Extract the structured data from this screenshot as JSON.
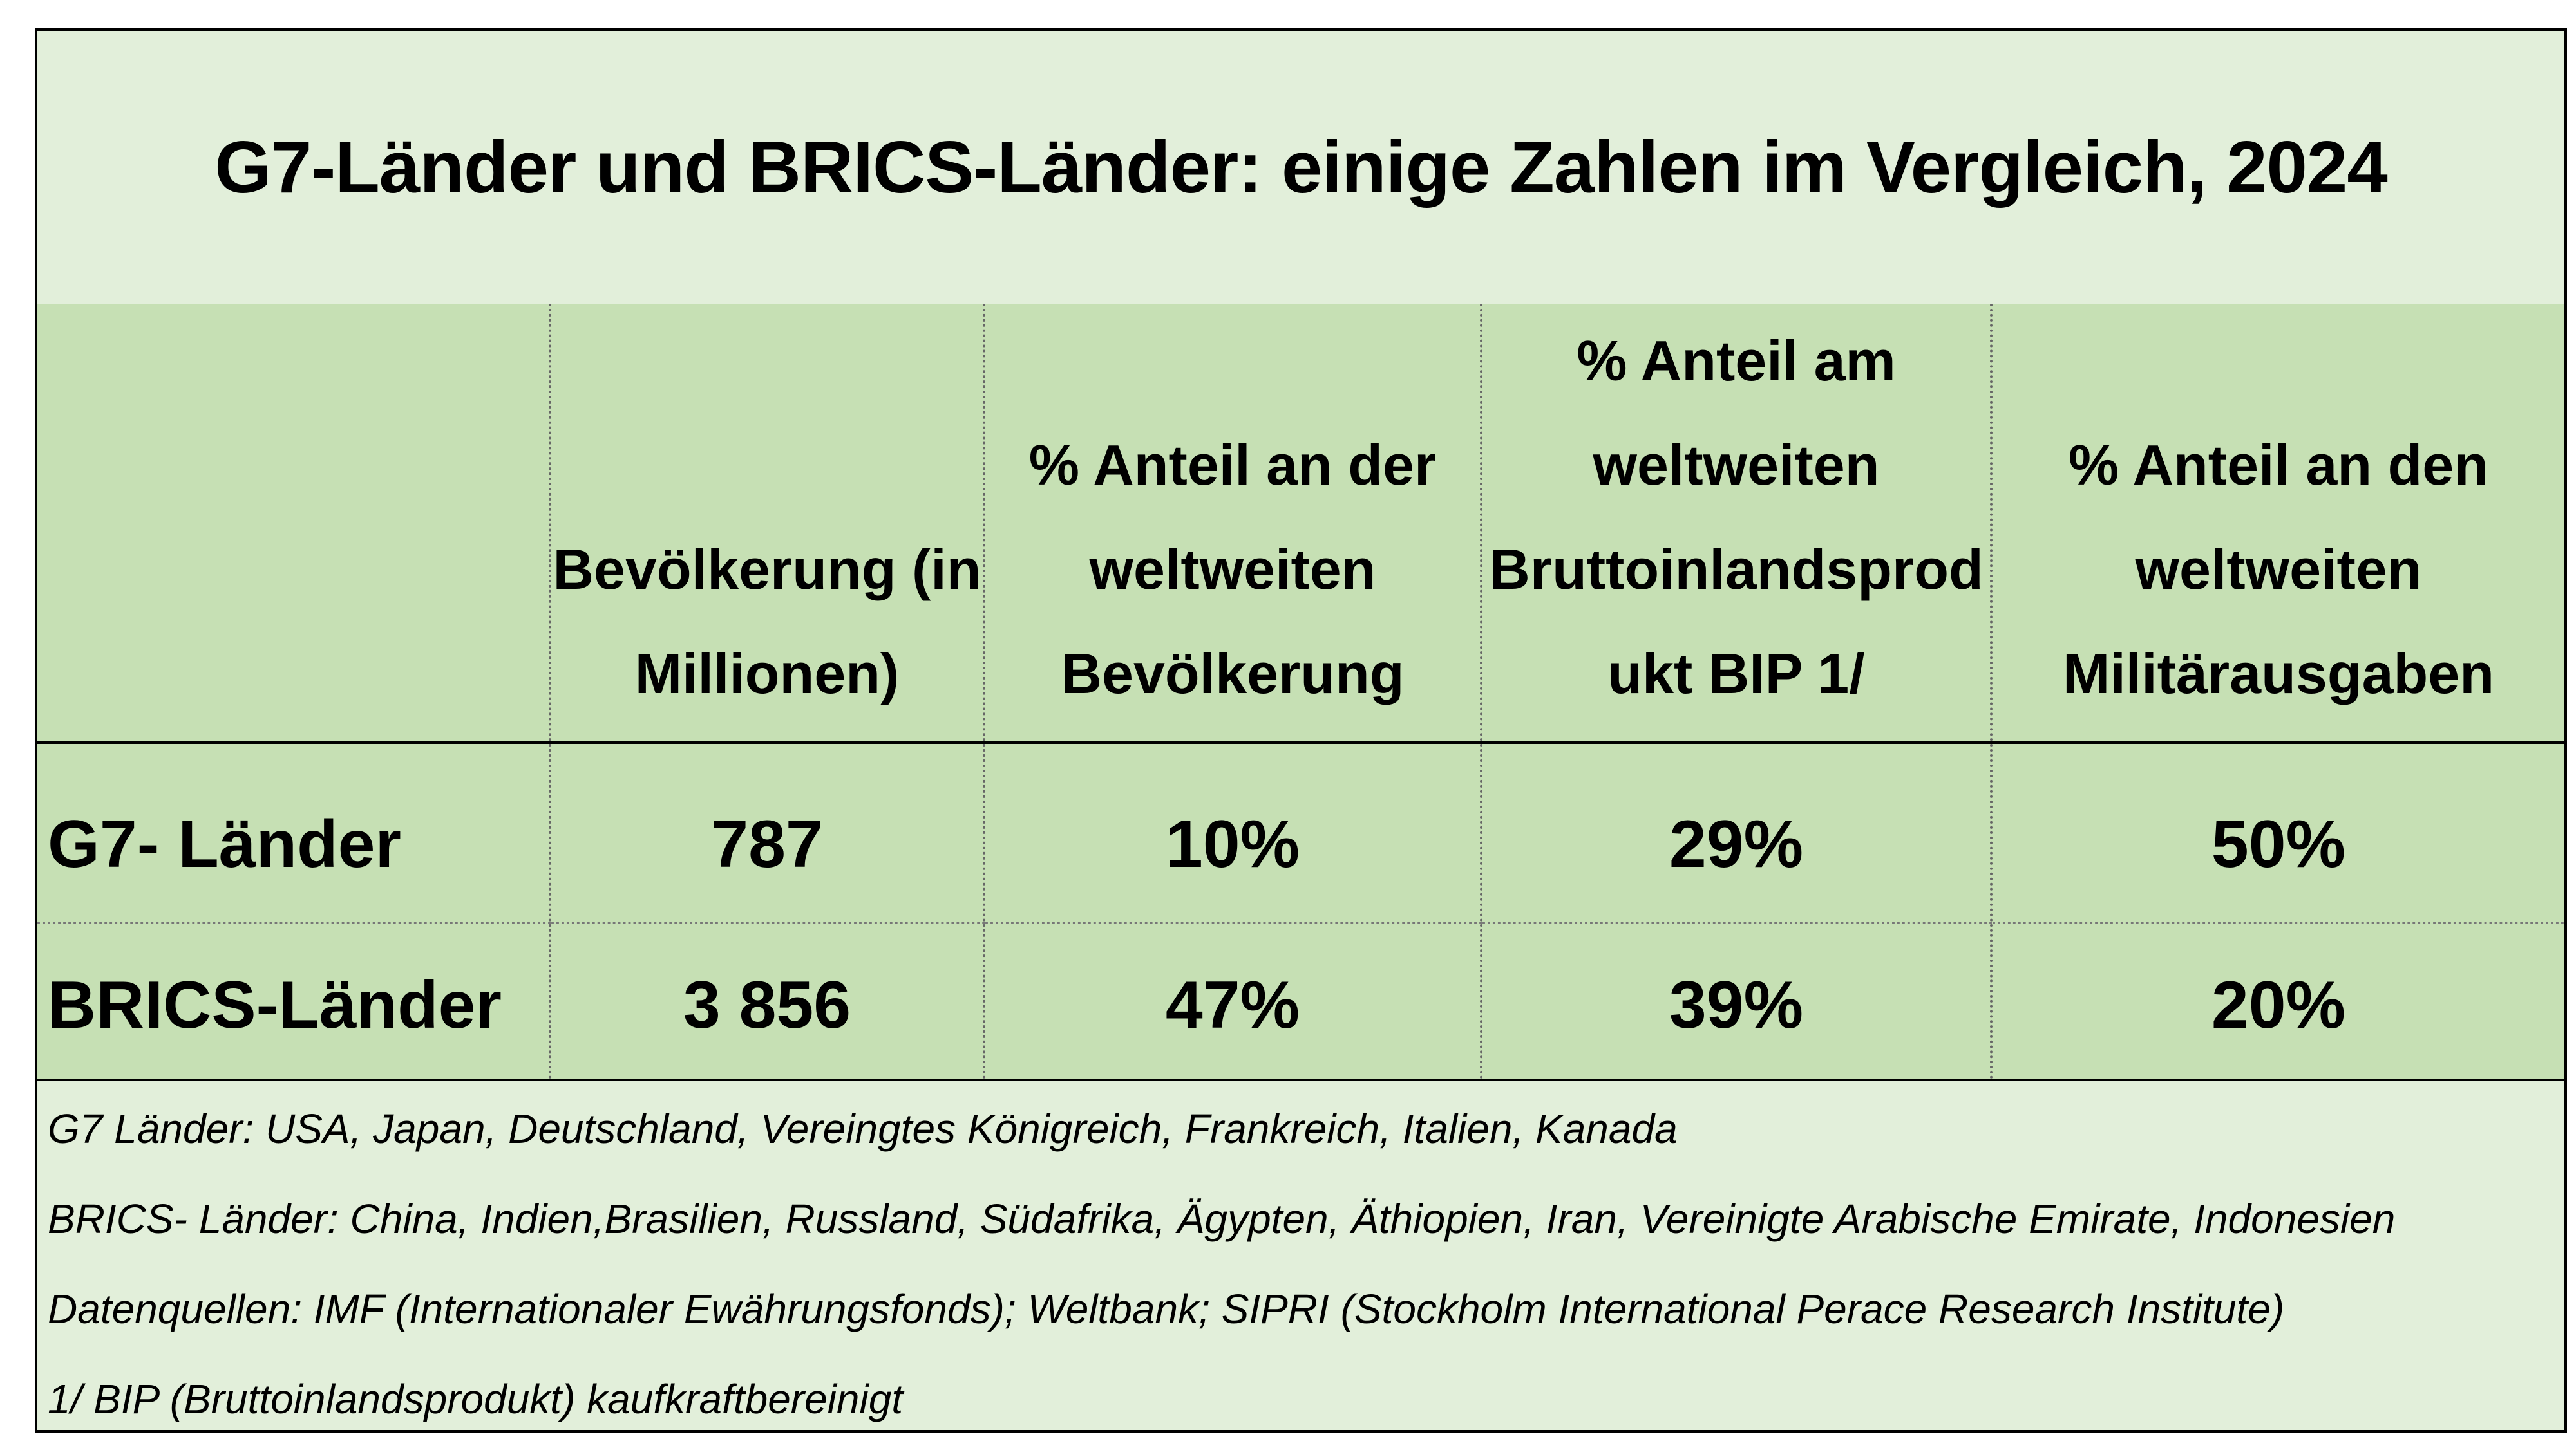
{
  "title": "G7-Länder und BRICS-Länder: einige Zahlen im Vergleich, 2024",
  "table": {
    "columns": [
      "",
      "Bevölkerung (in Millionen)",
      "% Anteil an der weltweiten Bevölkerung",
      "% Anteil am weltweiten Bruttoinlandsprodukt BIP 1/",
      "% Anteil an den weltweiten Militärausgaben"
    ],
    "header_lines": {
      "col1": [
        "Bevölkerung (in",
        "Millionen)"
      ],
      "col2": [
        "% Anteil an der",
        "weltweiten",
        "Bevölkerung"
      ],
      "col3": [
        "% Anteil am",
        "weltweiten",
        "Bruttoinlandsprod",
        "ukt BIP 1/"
      ],
      "col4": [
        "% Anteil an den",
        "weltweiten",
        "Militärausgaben"
      ]
    },
    "rows": [
      {
        "label": "G7- Länder",
        "population": "787",
        "population_share": "10%",
        "gdp_share": "29%",
        "military_share": "50%"
      },
      {
        "label": "BRICS-Länder",
        "population": "3 856",
        "population_share": "47%",
        "gdp_share": "39%",
        "military_share": "20%"
      }
    ]
  },
  "notes": [
    "G7 Länder: USA, Japan, Deutschland, Vereingtes Königreich, Frankreich, Italien, Kanada",
    "BRICS- Länder: China, Indien,Brasilien, Russland, Südafrika, Ägypten, Äthiopien, Iran, Vereinigte Arabische Emirate, Indonesien",
    "Datenquellen: IMF (Internationaler Ewährungsfonds); Weltbank; SIPRI (Stockholm International Perace Research Institute)",
    "1/ BIP (Bruttoinlandsprodukt) kaufkraftbereinigt"
  ],
  "colors": {
    "title_background": "#e2efda",
    "table_background": "#c6e0b4",
    "border": "#000000"
  }
}
